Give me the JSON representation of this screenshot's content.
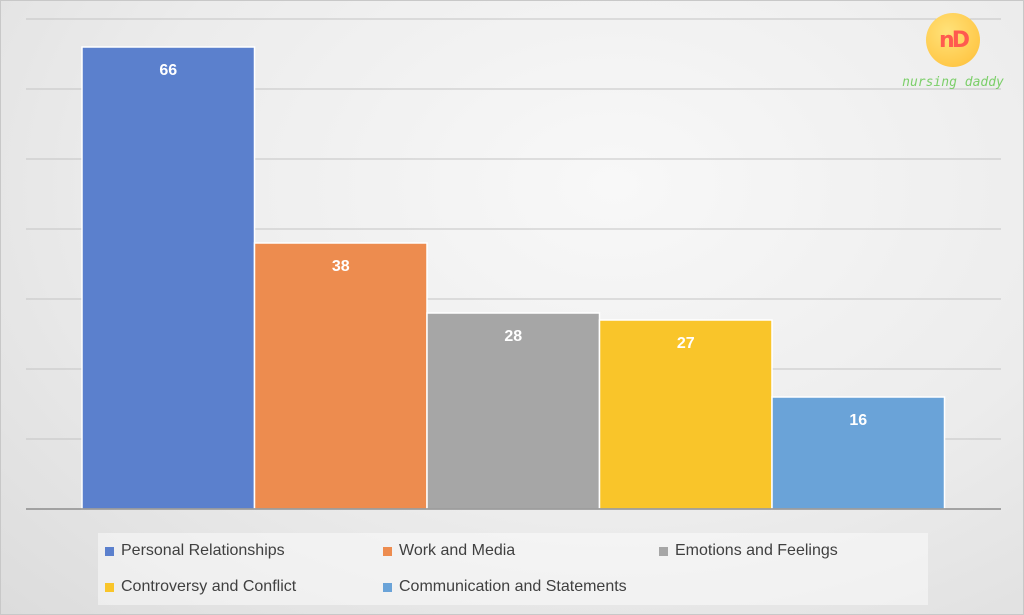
{
  "logo": {
    "glyph": "nD",
    "text": "nursing daddy"
  },
  "chart_data": {
    "type": "bar",
    "categories": [
      "Personal Relationships",
      "Work and Media",
      "Emotions and Feelings",
      "Controversy and Conflict",
      "Communication and Statements"
    ],
    "values": [
      66,
      38,
      28,
      27,
      16
    ],
    "colors": [
      "#5b80cd",
      "#ed8c4f",
      "#a6a6a6",
      "#f9c52a",
      "#6aa3d8"
    ],
    "data_labels": [
      "66",
      "38",
      "28",
      "27",
      "16"
    ],
    "ylim": [
      0,
      70
    ],
    "gridline_step": 10,
    "grid": true,
    "y_tick_labels_shown": false,
    "legend_position": "bottom",
    "title": "",
    "xlabel": "",
    "ylabel": ""
  }
}
